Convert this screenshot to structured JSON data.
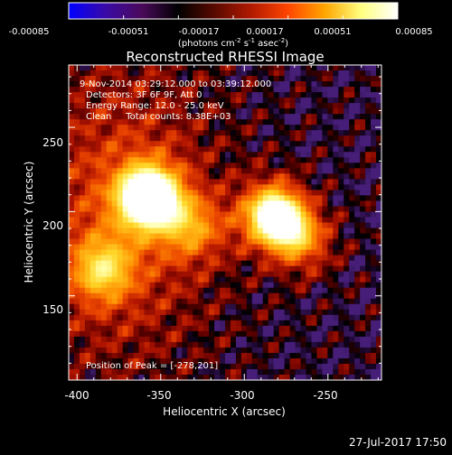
{
  "colorbar": {
    "ticks": [
      "-0.00085",
      "-0.00051",
      "-0.00017",
      "0.00017",
      "0.00051",
      "0.00085"
    ],
    "units_main": "(photons cm",
    "units_sup1": "-2",
    "units_mid1": " s",
    "units_sup2": "-1",
    "units_mid2": " asec",
    "units_sup3": "-2",
    "units_end": ")",
    "colors": [
      "#0000ff",
      "#3a0aa8",
      "#4a0a5a",
      "#000000",
      "#5a0a00",
      "#b21a00",
      "#ff4500",
      "#ffa500",
      "#ffff80",
      "#ffffff"
    ]
  },
  "image": {
    "title": "Reconstructed RHESSI Image",
    "info_lines": [
      "9-Nov-2014 03:29:12.000 to 03:39:12.000",
      "Detectors: 3F 6F 9F, Att 0",
      "Energy Range: 12.0 - 25.0 keV",
      "Clean     Total counts: 8.38E+03"
    ],
    "peak_text": "Position of Peak = [-278,201]",
    "x_axis": {
      "label": "Heliocentric X (arcsec)",
      "ticks": [
        "-400",
        "-350",
        "-300",
        "-250"
      ],
      "range": [
        -405,
        -218
      ]
    },
    "y_axis": {
      "label": "Heliocentric Y (arcsec)",
      "ticks": [
        "150",
        "200",
        "250"
      ],
      "range": [
        100,
        287
      ]
    },
    "sources": [
      {
        "x": -357,
        "y": 209,
        "amp": 1.0
      },
      {
        "x": -282,
        "y": 198,
        "amp": 1.1
      },
      {
        "x": -265,
        "y": 182,
        "amp": 0.55
      },
      {
        "x": -385,
        "y": 165,
        "amp": 0.55
      },
      {
        "x": -330,
        "y": 190,
        "amp": 0.45
      }
    ]
  },
  "footer": {
    "timestamp": "27-Jul-2017 17:50"
  }
}
